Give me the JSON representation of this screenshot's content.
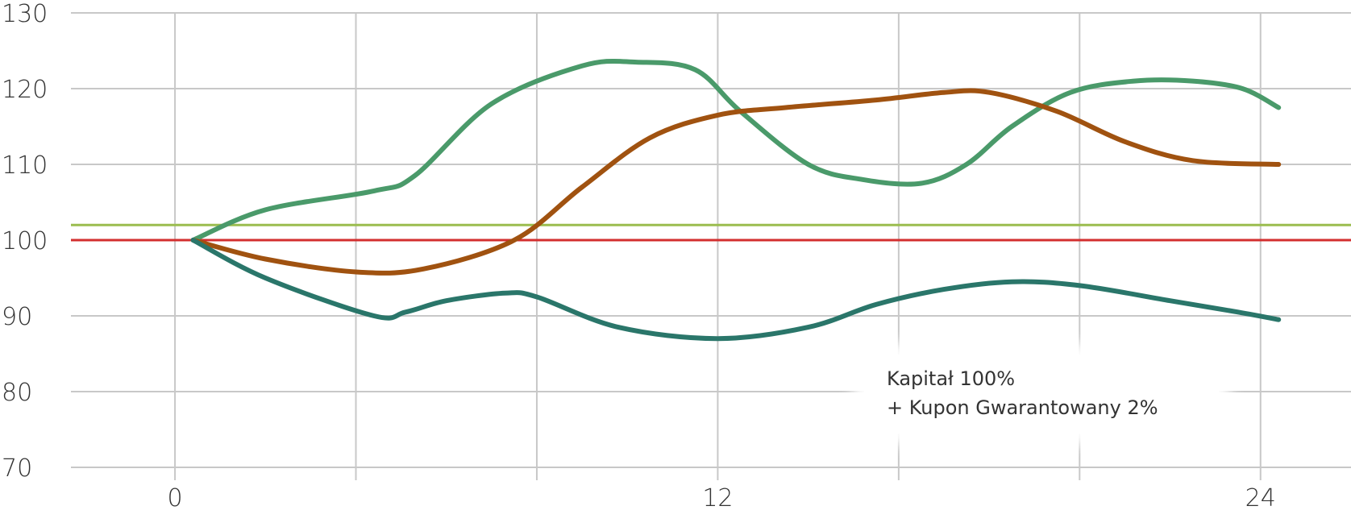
{
  "chart_data": {
    "type": "line",
    "title": "",
    "xlabel": "",
    "ylabel": "",
    "xlim": [
      -2.3,
      26
    ],
    "ylim": [
      70,
      130
    ],
    "x_ticks": [
      "0",
      "12",
      "24"
    ],
    "x_tick_values": [
      0,
      12,
      24
    ],
    "y_ticks": [
      "130",
      "120",
      "110",
      "100",
      "90",
      "80",
      "70"
    ],
    "y_tick_values": [
      130,
      120,
      110,
      100,
      90,
      80,
      70
    ],
    "x_grid": [
      0,
      4,
      8,
      12,
      16,
      20,
      24
    ],
    "grid": true,
    "reference_lines": [
      {
        "y": 100,
        "color": "#d32f2f"
      },
      {
        "y": 102,
        "color": "#9bbd4f"
      }
    ],
    "series": [
      {
        "color": "#4a9a6a",
        "x": [
          0.4,
          2,
          4.4,
          5.3,
          7,
          9,
          10.2,
          11.5,
          12.5,
          14,
          15.2,
          16.5,
          17.5,
          18.5,
          19.8,
          21.2,
          22.5,
          23.6,
          24.4
        ],
        "y": [
          100,
          104,
          106.5,
          108.5,
          118,
          123,
          123.5,
          122.5,
          117,
          110,
          108,
          107.5,
          110,
          115,
          119.5,
          121,
          121,
          120,
          117.5
        ]
      },
      {
        "color": "#a05210",
        "x": [
          0.4,
          2,
          4,
          5.5,
          7.5,
          9,
          10.5,
          12,
          13.5,
          15.5,
          17,
          18,
          19.5,
          21,
          22.5,
          24.4
        ],
        "y": [
          100,
          97.5,
          95.8,
          96.2,
          100,
          107,
          113.5,
          116.5,
          117.5,
          118.5,
          119.5,
          119.5,
          117,
          113,
          110.5,
          110
        ]
      },
      {
        "color": "#2a766a",
        "x": [
          0.4,
          2,
          4.4,
          5.1,
          6,
          7.3,
          8,
          9.8,
          12,
          14,
          15.5,
          17,
          18.5,
          20,
          22,
          23.5,
          24.4
        ],
        "y": [
          100,
          95,
          90,
          90.5,
          92,
          93,
          92.5,
          88.5,
          87,
          88.5,
          91.5,
          93.5,
          94.5,
          94,
          92,
          90.5,
          89.5
        ]
      }
    ],
    "annotations": [
      "Kapitał 100%",
      "+ Kupon Gwarantowany 2%"
    ]
  }
}
